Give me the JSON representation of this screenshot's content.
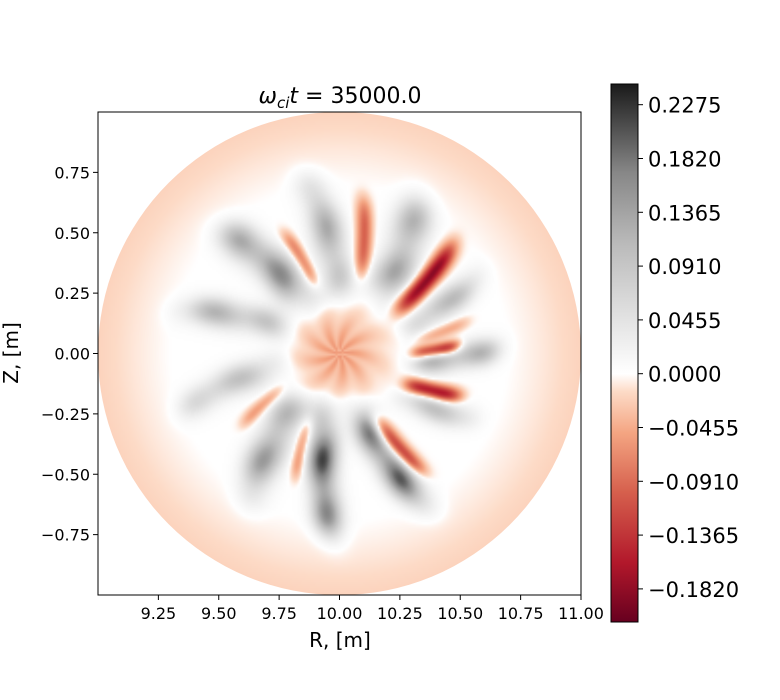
{
  "chart_data": {
    "type": "heatmap",
    "title": {
      "prefix": "ω",
      "sub": "ci",
      "var": "t",
      "suffix": " = 35000.0"
    },
    "xlabel": "R, [m]",
    "ylabel": "Z, [m]",
    "xlim": [
      9.0,
      11.0
    ],
    "ylim": [
      -1.0,
      1.0
    ],
    "xticks": [
      9.25,
      9.5,
      9.75,
      10.0,
      10.25,
      10.5,
      10.75,
      11.0
    ],
    "xtick_labels": [
      "9.25",
      "9.50",
      "9.75",
      "10.00",
      "10.25",
      "10.50",
      "10.75",
      "11.00"
    ],
    "yticks": [
      0.75,
      0.5,
      0.25,
      0.0,
      -0.25,
      -0.5,
      -0.75
    ],
    "ytick_labels": [
      "0.75",
      "0.50",
      "0.25",
      "0.00",
      "−0.25",
      "−0.50",
      "−0.75"
    ],
    "domain": {
      "shape": "circle",
      "center": [
        10.0,
        0.0
      ],
      "radius": 1.0
    },
    "colormap": {
      "name": "RdGy",
      "vmin": -0.21,
      "vmax": 0.245,
      "stops": [
        {
          "v": -0.21,
          "color": "#67001f"
        },
        {
          "v": -0.16,
          "color": "#b2182b"
        },
        {
          "v": -0.1,
          "color": "#d6604d"
        },
        {
          "v": -0.05,
          "color": "#f4a582"
        },
        {
          "v": -0.015,
          "color": "#fddbc7"
        },
        {
          "v": 0.0,
          "color": "#ffffff"
        },
        {
          "v": 0.05,
          "color": "#e0e0e0"
        },
        {
          "v": 0.11,
          "color": "#bababa"
        },
        {
          "v": 0.17,
          "color": "#878787"
        },
        {
          "v": 0.245,
          "color": "#1a1a1a"
        }
      ]
    },
    "colorbar_ticks": [
      0.2275,
      0.182,
      0.1365,
      0.091,
      0.0455,
      0.0,
      -0.0455,
      -0.091,
      -0.1365,
      -0.182
    ],
    "colorbar_tick_labels": [
      "0.2275",
      "0.1820",
      "0.1365",
      "0.0910",
      "0.0455",
      "0.0000",
      "−0.0455",
      "−0.0910",
      "−0.1365",
      "−0.1820"
    ],
    "grid": false,
    "features": {
      "core": {
        "r": 10.0,
        "z": 0.0,
        "radius": 0.17,
        "value": -0.05
      },
      "edge_value": -0.02,
      "gray_fingers": [
        {
          "angle_deg": 95,
          "r_in": 0.25,
          "r_out": 0.72,
          "width": 0.12,
          "value": 0.13
        },
        {
          "angle_deg": 128,
          "r_in": 0.25,
          "r_out": 0.7,
          "width": 0.13,
          "value": 0.17
        },
        {
          "angle_deg": 160,
          "r_in": 0.25,
          "r_out": 0.68,
          "width": 0.11,
          "value": 0.12
        },
        {
          "angle_deg": 195,
          "r_in": 0.25,
          "r_out": 0.68,
          "width": 0.11,
          "value": 0.1
        },
        {
          "angle_deg": 233,
          "r_in": 0.25,
          "r_out": 0.7,
          "width": 0.13,
          "value": 0.15
        },
        {
          "angle_deg": 262,
          "r_in": 0.25,
          "r_out": 0.75,
          "width": 0.11,
          "value": 0.22
        },
        {
          "angle_deg": 294,
          "r_in": 0.25,
          "r_out": 0.72,
          "width": 0.11,
          "value": 0.21
        },
        {
          "angle_deg": 330,
          "r_in": 0.3,
          "r_out": 0.62,
          "width": 0.1,
          "value": 0.1
        },
        {
          "angle_deg": 358,
          "r_in": 0.3,
          "r_out": 0.66,
          "width": 0.1,
          "value": 0.14
        },
        {
          "angle_deg": 25,
          "r_in": 0.3,
          "r_out": 0.66,
          "width": 0.1,
          "value": 0.11
        },
        {
          "angle_deg": 58,
          "r_in": 0.28,
          "r_out": 0.72,
          "width": 0.14,
          "value": 0.14
        }
      ],
      "red_streaks": [
        {
          "angle_deg": 78,
          "r_in": 0.33,
          "r_out": 0.65,
          "width": 0.06,
          "value": -0.1
        },
        {
          "angle_deg": 112,
          "r_in": 0.3,
          "r_out": 0.55,
          "width": 0.05,
          "value": -0.08
        },
        {
          "angle_deg": 40,
          "r_in": 0.3,
          "r_out": 0.65,
          "width": 0.07,
          "value": -0.19
        },
        {
          "angle_deg": 12,
          "r_in": 0.32,
          "r_out": 0.55,
          "width": 0.05,
          "value": -0.05
        },
        {
          "angle_deg": 2,
          "r_in": 0.3,
          "r_out": 0.5,
          "width": 0.05,
          "value": -0.18
        },
        {
          "angle_deg": 338,
          "r_in": 0.3,
          "r_out": 0.53,
          "width": 0.06,
          "value": -0.18
        },
        {
          "angle_deg": 302,
          "r_in": 0.3,
          "r_out": 0.6,
          "width": 0.06,
          "value": -0.15
        },
        {
          "angle_deg": 248,
          "r_in": 0.3,
          "r_out": 0.55,
          "width": 0.05,
          "value": -0.07
        },
        {
          "angle_deg": 214,
          "r_in": 0.28,
          "r_out": 0.5,
          "width": 0.05,
          "value": -0.06
        }
      ]
    }
  }
}
